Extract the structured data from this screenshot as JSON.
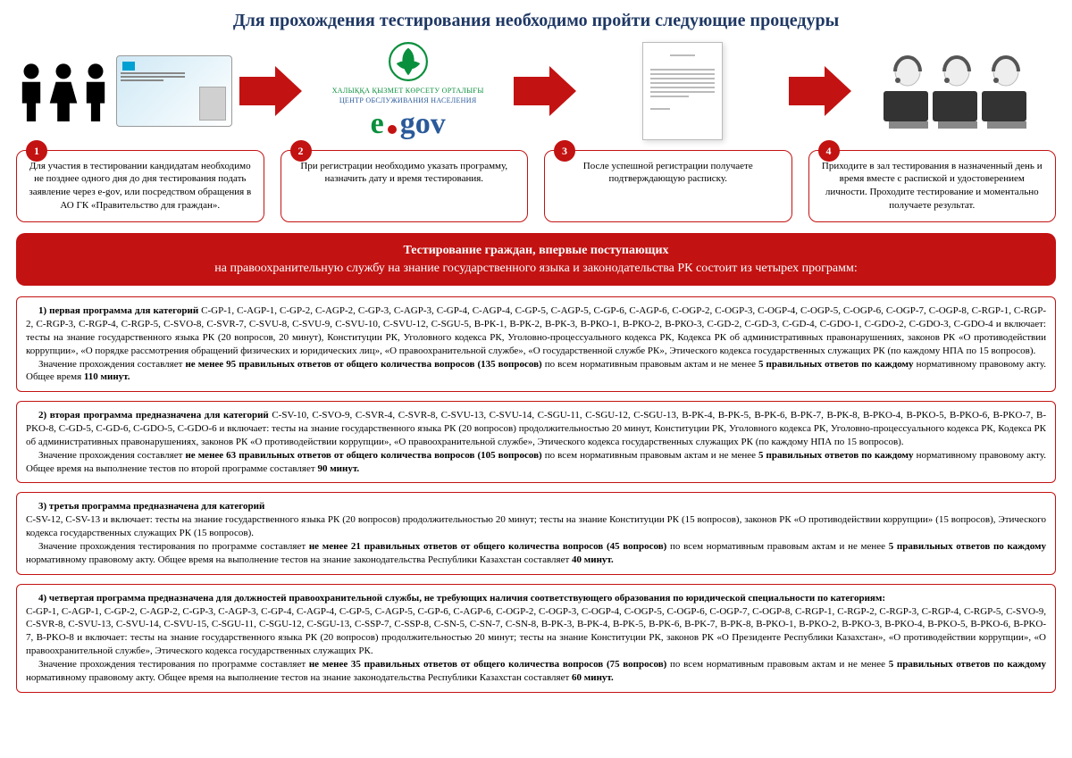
{
  "colors": {
    "title": "#1f3864",
    "accent_red": "#c31212",
    "egov_green": "#0a8f3c",
    "egov_blue": "#2a5a9a",
    "background": "#ffffff",
    "border_gray": "#bbbbbb"
  },
  "title": "Для прохождения тестирования необходимо пройти следующие процедуры",
  "egov": {
    "caption_kk": "ХАЛЫҚҚА ҚЫЗМЕТ КӨРСЕТУ ОРТАЛЫҒЫ",
    "caption_ru": "ЦЕНТР ОБСЛУЖИВАНИЯ НАСЕЛЕНИЯ",
    "e": "e",
    "gov": "gov"
  },
  "steps": [
    {
      "n": "1",
      "text": "Для участия в тестировании кандидатам необходимо не позднее одного дня до дня тестирования подать заявление через e-gov, или посредством обращения в АО ГК «Правительство для граждан»."
    },
    {
      "n": "2",
      "text": "При регистрации необходимо указать программу, назначить дату и время тестирования."
    },
    {
      "n": "3",
      "text": "После успешной регистрации получаете подтверждающую расписку."
    },
    {
      "n": "4",
      "text": "Приходите в зал тестирования в назначенный день и время вместе с распиской и удостоверением личности. Проходите тестирование и моментально получаете результат."
    }
  ],
  "banner": {
    "line1": "Тестирование граждан, впервые поступающих",
    "line2": "на правоохранительную службу на знание государственного языка и законодательства РК состоит из четырех программ:"
  },
  "programs": [
    {
      "html": "<span class='indent'><b>1) первая программа для категорий</b>  C-GP-1, C-AGP-1, C-GP-2, C-AGP-2, C-GP-3, C-AGP-3, C-GP-4, C-AGP-4, C-GP-5, C-AGP-5, C-GP-6, C-AGP-6, C-OGP-2, C-OGP-3, C-OGP-4, C-OGP-5, C-OGP-6, C-OGP-7, C-OGP-8, C-RGP-1, C-RGP-2, C-RGP-3, C-RGP-4, C-RGP-5, C-SVO-8, C-SVR-7, C-SVU-8, C-SVU-9, C-SVU-10, C-SVU-12, C-SGU-5, В-РК-1, В-РК-2, В-РК-3, В-РКО-1, В-РКО-2, В-РКО-3, C-GD-2, C-GD-3, C-GD-4, C-GDO-1, C-GDO-2, C-GDO-3, C-GDO-4 и включает: тесты на знание государственного языка РК (20 вопросов, 20 минут), Конституции РК, Уголовного кодекса РК, Уголовно-процессуального кодекса РК, Кодекса РК об административных правонарушениях, законов РК «О противодействии коррупции», «О порядке рассмотрения обращений физических и юридических лиц», «О правоохранительной службе», «О государственной службе РК», Этического кодекса государственных служащих РК (по каждому НПА по 15 вопросов).</span><span class='indent'>Значение прохождения составляет <b>не менее 95 правильных ответов от общего количества вопросов (135 вопросов)</b> по всем нормативным правовым актам и не менее <b>5 правильных ответов по каждому</b> нормативному правовому акту. Общее время <b>110 минут.</b></span>"
    },
    {
      "html": "<span class='indent'><b>2) вторая программа предназначена для категорий</b>  С-SV-10, C-SVO-9, C-SVR-4, C-SVR-8, C-SVU-13, C-SVU-14, C-SGU-11, C-SGU-12, C-SGU-13, B-PK-4, B-PK-5, B-PK-6, B-PK-7, B-PK-8, B-PKO-4, B-PKO-5, B-PKO-6, B-PKO-7, B-PKO-8, C-GD-5, C-GD-6, C-GDO-5, C-GDO-6 и включает: тесты на знание государственного языка РК (20 вопросов) продолжительностью 20 минут, Конституции РК, Уголовного кодекса РК, Уголовно-процессуального кодекса РК, Кодекса РК об административных правонарушениях, законов РК «О противодействии коррупции», «О правоохранительной службе», Этического кодекса государственных служащих РК (по каждому НПА по 15 вопросов).</span><span class='indent'>Значение прохождения составляет <b>не менее 63 правильных ответов от общего количества вопросов (105 вопросов)</b> по всем нормативным правовым актам и не менее <b>5 правильных ответов по каждому</b> нормативному правовому акту. Общее время на выполнение тестов по второй программе составляет <b>90 минут.</b></span>"
    },
    {
      "html": "<span class='indent'><b>3) третья программа предназначена для категорий</b></span>C-SV-12, C-SV-13 и включает: тесты на знание государственного языка РК (20 вопросов) продолжительностью 20 минут; тесты на знание Конституции РК (15 вопросов), законов РК «О противодействии коррупции» (15 вопросов), Этического кодекса государственных служащих РК (15 вопросов).<br><span class='indent'>Значение прохождения тестирования по программе составляет <b>не менее 21 правильных ответов от общего количества вопросов (45 вопросов)</b> по всем нормативным правовым актам и не менее <b>5 правильных ответов по каждому</b> нормативному правовому акту. Общее время на выполнение тестов на знание законодательства Республики Казахстан составляет <b>40 минут.</b></span>"
    },
    {
      "html": "<span class='indent'><b>4) четвертая программа предназначена для должностей правоохранительной службы, не требующих наличия соответствующего образования по юридической специальности по категориям:</b></span>C-GP-1, C-AGP-1, C-GP-2, C-AGP-2, C-GP-3, C-AGP-3, C-GP-4, C-AGP-4, C-GP-5, C-AGP-5, C-GP-6, C-AGP-6, C-OGP-2, C-OGP-3, C-OGP-4, C-OGP-5, C-OGP-6, C-OGP-7, C-OGP-8, C-RGP-1, C-RGP-2, C-RGP-3, C-RGP-4, C-RGP-5, C-SVO-9, C-SVR-8, C-SVU-13, C-SVU-14, C-SVU-15, C-SGU-11, C-SGU-12, C-SGU-13, C-SSP-7, C-SSP-8, C-SN-5, C-SN-7, C-SN-8, B-PK-3, B-PK-4, B-PK-5, B-PK-6, B-PK-7, B-PK-8, B-PKO-1, B-PKO-2, B-PKO-3, B-PKO-4, B-PKO-5, B-PKO-6, B-PKO-7, B-PKO-8 и включает: тесты на знание государственного языка РК (20 вопросов) продолжительностью 20 минут; тесты на знание Конституции РК, законов РК «О Президенте Республики Казахстан», «О противодействии коррупции», «О правоохранительной службе», Этического кодекса государственных служащих РК.<br><span class='indent'>Значение прохождения тестирования по программе составляет <b>не менее 35 правильных ответов от общего количества вопросов (75 вопросов)</b> по всем нормативным правовым актам и не менее <b>5 правильных ответов по каждому</b> нормативному правовому акту. Общее время на выполнение тестов на знание законодательства Республики Казахстан составляет <b>60 минут.</b></span>"
    }
  ]
}
